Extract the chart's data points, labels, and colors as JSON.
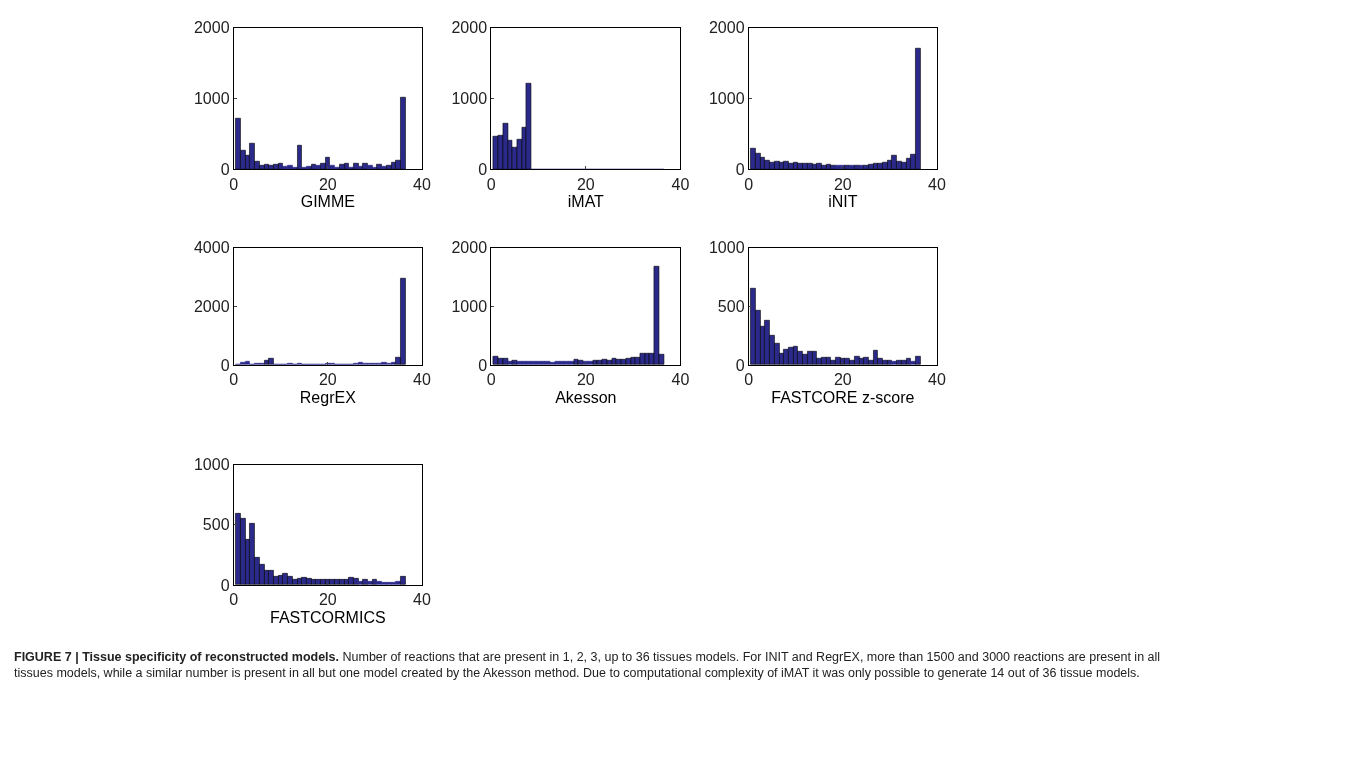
{
  "chart_data": [
    {
      "type": "histogram",
      "xlabel": "GIMME",
      "color": "#2b2a8a",
      "bins": [
        0.5,
        1.5,
        2.5,
        3.5,
        4.5,
        5.5,
        6.5,
        7.5,
        8.5,
        9.5,
        10.5,
        11.5,
        12.5,
        13.5,
        14.5,
        15.5,
        16.5,
        17.5,
        18.5,
        19.5,
        20.5,
        21.5,
        22.5,
        23.5,
        24.5,
        25.5,
        26.5,
        27.5,
        28.5,
        29.5,
        30.5,
        31.5,
        32.5,
        33.5,
        34.5,
        35.5,
        36.5
      ],
      "values": [
        720,
        260,
        190,
        360,
        110,
        60,
        70,
        60,
        70,
        80,
        40,
        50,
        30,
        340,
        30,
        40,
        70,
        50,
        80,
        160,
        50,
        30,
        70,
        80,
        30,
        80,
        40,
        80,
        50,
        30,
        70,
        40,
        60,
        90,
        120,
        1010
      ],
      "xlim": [
        0,
        40
      ],
      "xticks": [
        0,
        20,
        40
      ],
      "ylim": [
        0,
        2000
      ],
      "yticks": [
        0,
        1000,
        2000
      ],
      "annotations": [
        "FIGURE 7 | Tissue specificity of reconstructed models.",
        "Number of reactions that are present in 1, 2, 3, up to 36 tissues models. For INIT and RegrEX, more than 1500 and 3000 reactions are present in all tissues models, while a similar number is present in all but one model created by the Akesson method. Due to computational complexity of iMAT it was only possible to generate 14 out of 36 tissue models."
      ]
    },
    {
      "type": "histogram",
      "xlabel": "iMAT",
      "color": "#2b2a8a",
      "bins": [
        0.5,
        1.5,
        2.5,
        3.5,
        4.5,
        5.5,
        6.5,
        7.5,
        8.5,
        9.5,
        10.5,
        11.5,
        12.5,
        13.5,
        14.5,
        15.5,
        16.5,
        17.5,
        18.5,
        19.5,
        20.5,
        21.5,
        22.5,
        23.5,
        24.5,
        25.5,
        26.5,
        27.5,
        28.5,
        29.5,
        30.5,
        31.5,
        32.5,
        33.5,
        34.5,
        35.5,
        36.5
      ],
      "values": [
        460,
        480,
        650,
        400,
        310,
        420,
        590,
        1210,
        0,
        0,
        0,
        0,
        0,
        0,
        0,
        0,
        0,
        0,
        0,
        0,
        0,
        0,
        0,
        0,
        0,
        0,
        0,
        0,
        0,
        0,
        0,
        0,
        0,
        0,
        0,
        0
      ],
      "xlim": [
        0,
        40
      ],
      "xticks": [
        0,
        20,
        40
      ],
      "ylim": [
        0,
        2000
      ],
      "yticks": [
        0,
        1000,
        2000
      ]
    },
    {
      "type": "histogram",
      "xlabel": "iNIT",
      "color": "#2b2a8a",
      "bins": [
        0.5,
        1.5,
        2.5,
        3.5,
        4.5,
        5.5,
        6.5,
        7.5,
        8.5,
        9.5,
        10.5,
        11.5,
        12.5,
        13.5,
        14.5,
        15.5,
        16.5,
        17.5,
        18.5,
        19.5,
        20.5,
        21.5,
        22.5,
        23.5,
        24.5,
        25.5,
        26.5,
        27.5,
        28.5,
        29.5,
        30.5,
        31.5,
        32.5,
        33.5,
        34.5,
        35.5,
        36.5
      ],
      "values": [
        290,
        220,
        170,
        130,
        100,
        110,
        100,
        110,
        80,
        100,
        80,
        80,
        80,
        70,
        80,
        60,
        70,
        60,
        50,
        50,
        60,
        50,
        60,
        50,
        60,
        70,
        80,
        80,
        100,
        120,
        190,
        110,
        100,
        150,
        210,
        1710
      ],
      "xlim": [
        0,
        40
      ],
      "xticks": [
        0,
        20,
        40
      ],
      "ylim": [
        0,
        2000
      ],
      "yticks": [
        0,
        1000,
        2000
      ]
    },
    {
      "type": "histogram",
      "xlabel": "RegrEX",
      "color": "#2b2a8a",
      "bins": [
        0.5,
        1.5,
        2.5,
        3.5,
        4.5,
        5.5,
        6.5,
        7.5,
        8.5,
        9.5,
        10.5,
        11.5,
        12.5,
        13.5,
        14.5,
        15.5,
        16.5,
        17.5,
        18.5,
        19.5,
        20.5,
        21.5,
        22.5,
        23.5,
        24.5,
        25.5,
        26.5,
        27.5,
        28.5,
        29.5,
        30.5,
        31.5,
        32.5,
        33.5,
        34.5,
        35.5,
        36.5
      ],
      "values": [
        20,
        70,
        120,
        20,
        30,
        60,
        150,
        200,
        20,
        20,
        20,
        30,
        20,
        30,
        20,
        20,
        20,
        20,
        20,
        60,
        30,
        20,
        20,
        20,
        20,
        40,
        80,
        60,
        40,
        40,
        50,
        80,
        60,
        70,
        250,
        2950
      ],
      "xlim": [
        0,
        40
      ],
      "xticks": [
        0,
        20,
        40
      ],
      "ylim": [
        0,
        4000
      ],
      "yticks": [
        0,
        2000,
        4000
      ]
    },
    {
      "type": "histogram",
      "xlabel": "Akesson",
      "color": "#2b2a8a",
      "bins": [
        0.5,
        1.5,
        2.5,
        3.5,
        4.5,
        5.5,
        6.5,
        7.5,
        8.5,
        9.5,
        10.5,
        11.5,
        12.5,
        13.5,
        14.5,
        15.5,
        16.5,
        17.5,
        18.5,
        19.5,
        20.5,
        21.5,
        22.5,
        23.5,
        24.5,
        25.5,
        26.5,
        27.5,
        28.5,
        29.5,
        30.5,
        31.5,
        32.5,
        33.5,
        34.5,
        35.5,
        36.5
      ],
      "values": [
        150,
        100,
        100,
        60,
        80,
        60,
        60,
        50,
        50,
        50,
        50,
        50,
        40,
        50,
        60,
        60,
        50,
        90,
        70,
        50,
        60,
        80,
        70,
        90,
        80,
        100,
        90,
        90,
        100,
        130,
        130,
        200,
        200,
        200,
        1680,
        170
      ],
      "xlim": [
        0,
        40
      ],
      "xticks": [
        0,
        20,
        40
      ],
      "ylim": [
        0,
        2000
      ],
      "yticks": [
        0,
        1000,
        2000
      ]
    },
    {
      "type": "histogram",
      "xlabel": "FASTCORE z-score",
      "color": "#2b2a8a",
      "bins": [
        0.5,
        1.5,
        2.5,
        3.5,
        4.5,
        5.5,
        6.5,
        7.5,
        8.5,
        9.5,
        10.5,
        11.5,
        12.5,
        13.5,
        14.5,
        15.5,
        16.5,
        17.5,
        18.5,
        19.5,
        20.5,
        21.5,
        22.5,
        23.5,
        24.5,
        25.5,
        26.5,
        27.5,
        28.5,
        29.5,
        30.5,
        31.5,
        32.5,
        33.5,
        34.5,
        35.5,
        36.5
      ],
      "values": [
        650,
        460,
        330,
        380,
        250,
        180,
        100,
        130,
        150,
        160,
        110,
        90,
        110,
        110,
        50,
        60,
        60,
        40,
        60,
        50,
        50,
        40,
        70,
        50,
        60,
        40,
        120,
        50,
        40,
        40,
        30,
        40,
        40,
        50,
        30,
        70
      ],
      "xlim": [
        0,
        40
      ],
      "xticks": [
        0,
        20,
        40
      ],
      "ylim": [
        0,
        1000
      ],
      "yticks": [
        0,
        500,
        1000
      ]
    },
    {
      "type": "histogram",
      "xlabel": "FASTCORMICS",
      "color": "#2b2a8a",
      "bins": [
        0.5,
        1.5,
        2.5,
        3.5,
        4.5,
        5.5,
        6.5,
        7.5,
        8.5,
        9.5,
        10.5,
        11.5,
        12.5,
        13.5,
        14.5,
        15.5,
        16.5,
        17.5,
        18.5,
        19.5,
        20.5,
        21.5,
        22.5,
        23.5,
        24.5,
        25.5,
        26.5,
        27.5,
        28.5,
        29.5,
        30.5,
        31.5,
        32.5,
        33.5,
        34.5,
        35.5,
        36.5
      ],
      "values": [
        590,
        550,
        380,
        510,
        230,
        170,
        120,
        120,
        70,
        80,
        90,
        70,
        40,
        50,
        60,
        50,
        40,
        40,
        40,
        40,
        40,
        40,
        40,
        40,
        60,
        50,
        30,
        40,
        30,
        40,
        30,
        20,
        20,
        20,
        30,
        70
      ],
      "xlim": [
        0,
        40
      ],
      "xticks": [
        0,
        20,
        40
      ],
      "ylim": [
        0,
        1000
      ],
      "yticks": [
        0,
        500,
        1000
      ]
    }
  ]
}
